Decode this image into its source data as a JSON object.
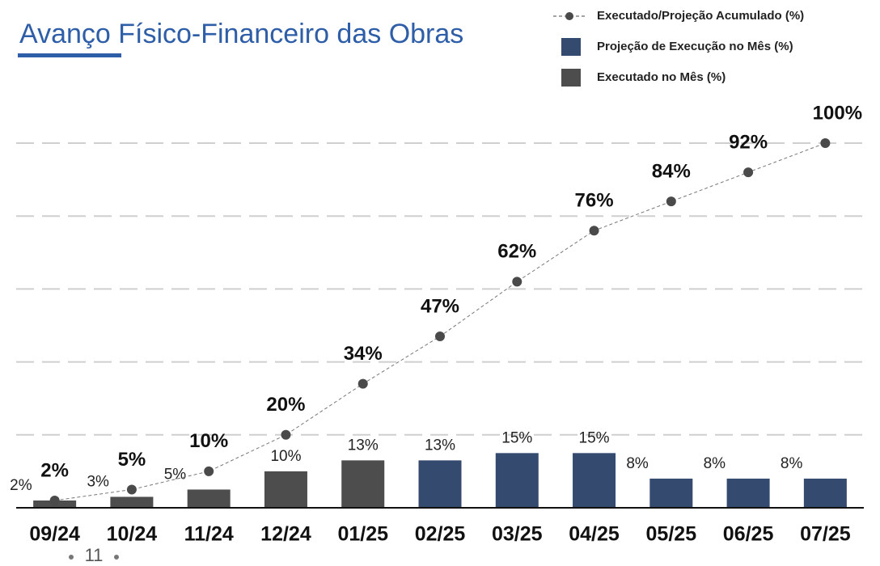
{
  "chart_data": {
    "type": "bar",
    "title": "Avanço Físico-Financeiro das Obras",
    "categories": [
      "09/24",
      "10/24",
      "11/24",
      "12/24",
      "01/25",
      "02/25",
      "03/25",
      "04/25",
      "05/25",
      "06/25",
      "07/25"
    ],
    "series": [
      {
        "name": "Executado/Projeção Acumulado (%)",
        "type": "line",
        "color": "#4a4a4a",
        "values": [
          2,
          5,
          10,
          20,
          34,
          47,
          62,
          76,
          84,
          92,
          100
        ],
        "value_labels": [
          "2%",
          "5%",
          "10%",
          "20%",
          "34%",
          "47%",
          "62%",
          "76%",
          "84%",
          "92%",
          "100%"
        ]
      },
      {
        "name": "Projeção de Execução no Mês (%)",
        "type": "bar",
        "color": "#344a6e",
        "values": [
          null,
          null,
          null,
          null,
          null,
          13,
          15,
          15,
          8,
          8,
          8
        ],
        "value_labels": [
          null,
          null,
          null,
          null,
          null,
          "13%",
          "15%",
          "15%",
          "8%",
          "8%",
          "8%"
        ]
      },
      {
        "name": "Executado no Mês (%)",
        "type": "bar",
        "color": "#4d4d4d",
        "values": [
          2,
          3,
          5,
          10,
          13,
          null,
          null,
          null,
          null,
          null,
          null
        ],
        "value_labels": [
          "2%",
          "3%",
          "5%",
          "10%",
          "13%",
          null,
          null,
          null,
          null,
          null,
          null
        ]
      }
    ],
    "ylim": [
      0,
      100
    ],
    "yticks": [
      0,
      20,
      40,
      60,
      80,
      100
    ],
    "grid": true
  },
  "page_number": "11"
}
